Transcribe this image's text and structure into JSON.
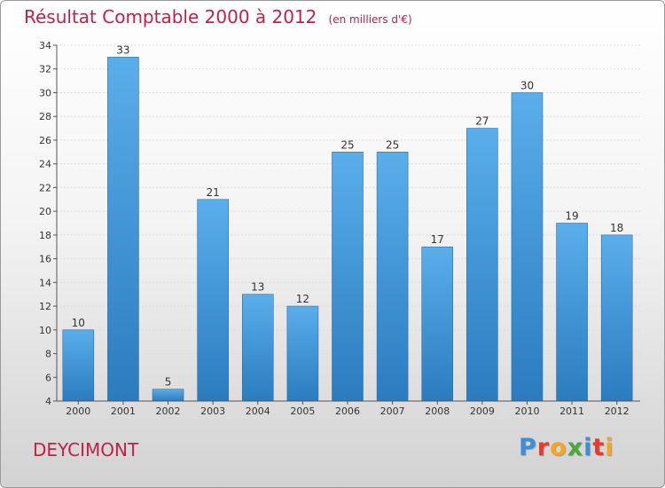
{
  "header": {
    "title": "Résultat Comptable 2000 à 2012",
    "subtitle": "(en milliers d'€)"
  },
  "footer": {
    "commune": "DEYCIMONT",
    "logo_letters": [
      "P",
      "r",
      "o",
      "x",
      "i",
      "t",
      "i"
    ],
    "logo_colors": [
      "#3a8fd8",
      "#e83a2a",
      "#f2a623",
      "#49a83a",
      "#3a8fd8",
      "#e83a2a",
      "#f2a623"
    ]
  },
  "colors": {
    "bar_top": "#5aaeea",
    "bar_bottom": "#2a7cbf",
    "title": "#c0204a"
  },
  "chart_data": {
    "type": "bar",
    "title": "Résultat Comptable 2000 à 2012",
    "xlabel": "",
    "ylabel": "",
    "categories": [
      "2000",
      "2001",
      "2002",
      "2003",
      "2004",
      "2005",
      "2006",
      "2007",
      "2008",
      "2009",
      "2010",
      "2011",
      "2012"
    ],
    "values": [
      10,
      33,
      5,
      21,
      13,
      12,
      25,
      25,
      17,
      27,
      30,
      19,
      18
    ],
    "ylim": [
      4,
      34
    ],
    "yticks": [
      4,
      6,
      8,
      10,
      12,
      14,
      16,
      18,
      20,
      22,
      24,
      26,
      28,
      30,
      32,
      34
    ],
    "grid": true
  }
}
